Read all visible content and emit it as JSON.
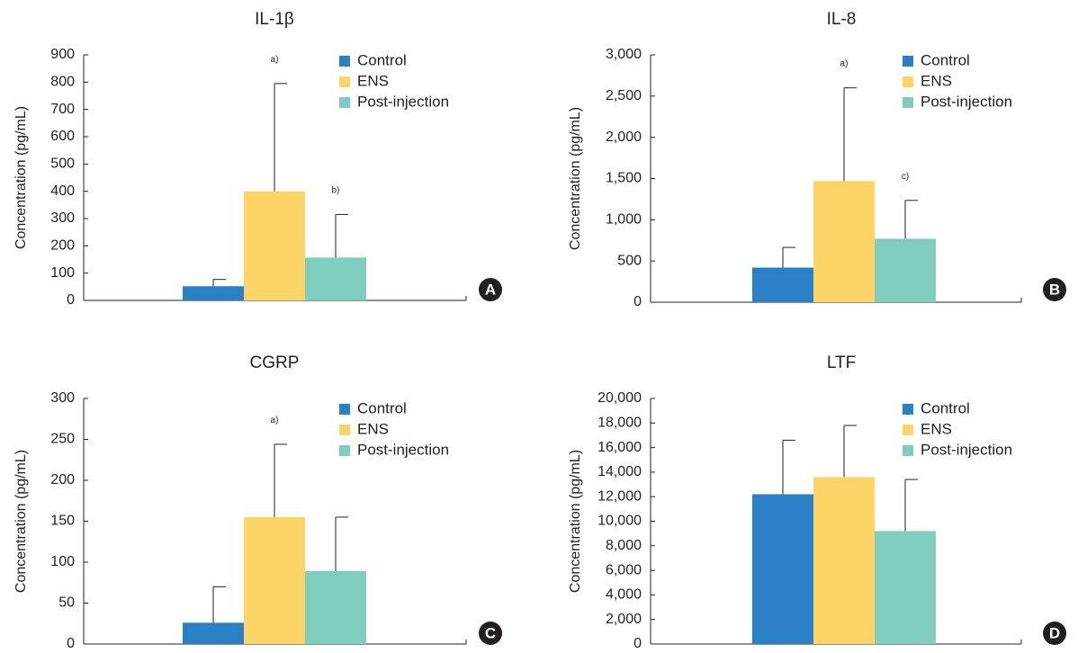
{
  "colors": {
    "control": "#2b80c5",
    "ens": "#fdd567",
    "post_injection": "#7ecdbf",
    "axis": "#231f20",
    "panel_badge": "#231f20",
    "badge_text": "#ffffff"
  },
  "chart_data": [
    {
      "panel": "A",
      "type": "bar",
      "title": "IL-1β",
      "ylabel": "Concentration (pg/mL)",
      "xlabel": "",
      "ylim": [
        0,
        900
      ],
      "yticks": [
        0,
        100,
        200,
        300,
        400,
        500,
        600,
        700,
        800,
        900
      ],
      "ytick_labels": [
        "0",
        "100",
        "200",
        "300",
        "400",
        "500",
        "600",
        "700",
        "800",
        "900"
      ],
      "legend_position": "top-right",
      "grid": false,
      "series": [
        {
          "name": "Control",
          "value": 52,
          "error": 25,
          "annotation": ""
        },
        {
          "name": "ENS",
          "value": 400,
          "error": 395,
          "annotation": "a)"
        },
        {
          "name": "Post-injection",
          "value": 157,
          "error": 158,
          "annotation": "b)"
        }
      ]
    },
    {
      "panel": "B",
      "type": "bar",
      "title": "IL-8",
      "ylabel": "Concentration (pg/mL)",
      "xlabel": "",
      "ylim": [
        0,
        3000
      ],
      "yticks": [
        0,
        500,
        1000,
        1500,
        2000,
        2500,
        3000
      ],
      "ytick_labels": [
        "0",
        "500",
        "1,000",
        "1,500",
        "2,000",
        "2,500",
        "3,000"
      ],
      "legend_position": "top-right",
      "grid": false,
      "series": [
        {
          "name": "Control",
          "value": 420,
          "error": 245,
          "annotation": ""
        },
        {
          "name": "ENS",
          "value": 1470,
          "error": 1130,
          "annotation": "a)"
        },
        {
          "name": "Post-injection",
          "value": 770,
          "error": 465,
          "annotation": "c)"
        }
      ]
    },
    {
      "panel": "C",
      "type": "bar",
      "title": "CGRP",
      "ylabel": "Concentration (pg/mL)",
      "xlabel": "",
      "ylim": [
        0,
        300
      ],
      "yticks": [
        0,
        50,
        100,
        150,
        200,
        250,
        300
      ],
      "ytick_labels": [
        "0",
        "50",
        "100",
        "150",
        "200",
        "250",
        "300"
      ],
      "legend_position": "top-right",
      "grid": false,
      "series": [
        {
          "name": "Control",
          "value": 26,
          "error": 44,
          "annotation": ""
        },
        {
          "name": "ENS",
          "value": 155,
          "error": 89,
          "annotation": "a)"
        },
        {
          "name": "Post-injection",
          "value": 89,
          "error": 66,
          "annotation": ""
        }
      ]
    },
    {
      "panel": "D",
      "type": "bar",
      "title": "LTF",
      "ylabel": "Concentration (pg/mL)",
      "xlabel": "",
      "ylim": [
        0,
        20000
      ],
      "yticks": [
        0,
        2000,
        4000,
        6000,
        8000,
        10000,
        12000,
        14000,
        16000,
        18000,
        20000
      ],
      "ytick_labels": [
        "0",
        "2,000",
        "4,000",
        "6,000",
        "8,000",
        "10,000",
        "12,000",
        "14,000",
        "16,000",
        "18,000",
        "20,000"
      ],
      "legend_position": "top-right",
      "grid": false,
      "series": [
        {
          "name": "Control",
          "value": 12200,
          "error": 4400,
          "annotation": ""
        },
        {
          "name": "ENS",
          "value": 13600,
          "error": 4200,
          "annotation": ""
        },
        {
          "name": "Post-injection",
          "value": 9200,
          "error": 4200,
          "annotation": ""
        }
      ]
    }
  ]
}
